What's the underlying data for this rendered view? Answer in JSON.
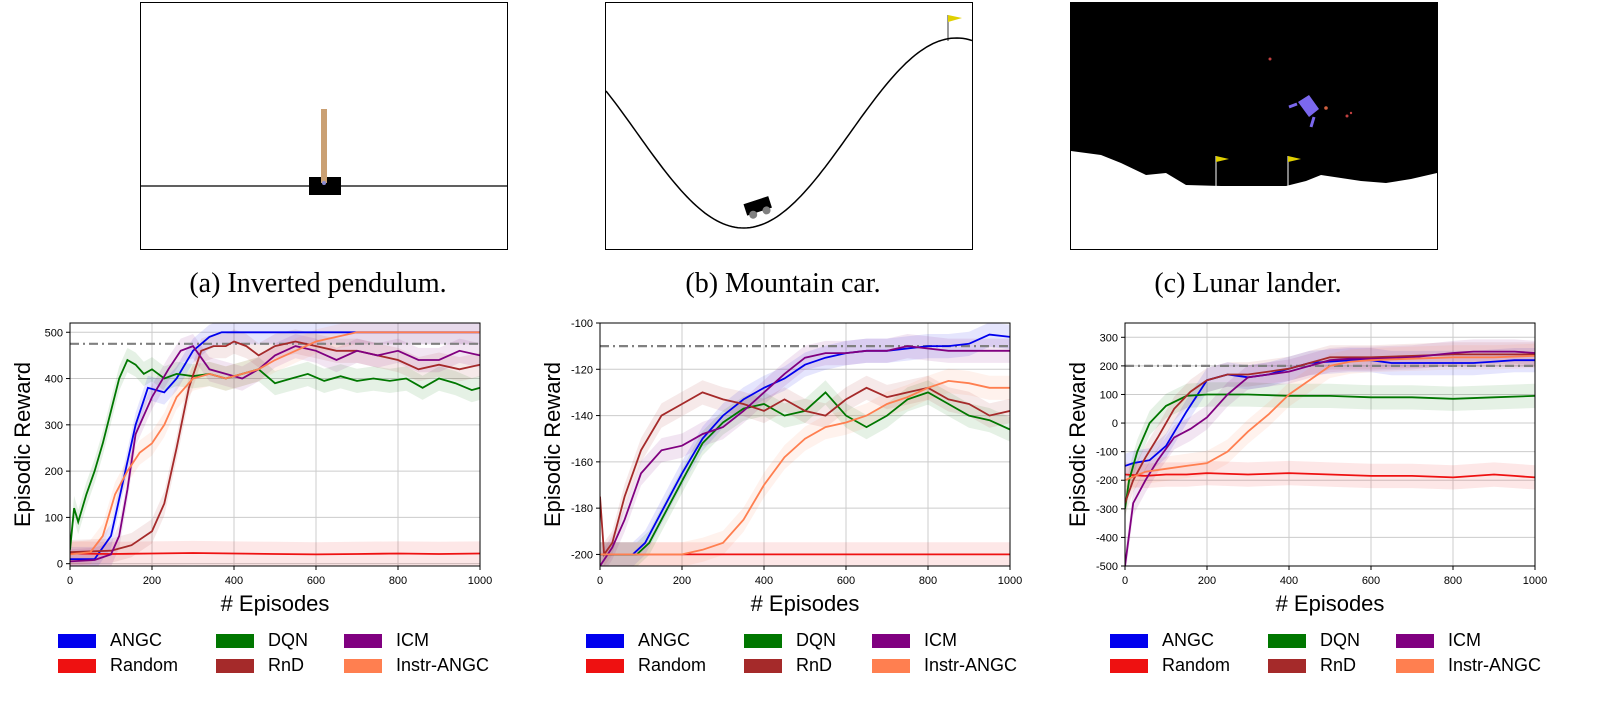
{
  "panels": [
    {
      "caption": "(a) Inverted pendulum."
    },
    {
      "caption": "(b) Mountain car."
    },
    {
      "caption": "(c) Lunar lander."
    }
  ],
  "colors": {
    "ANGC": "#0000ee",
    "Random": "#ee1111",
    "DQN": "#007700",
    "RnD": "#a52a2a",
    "ICM": "#800080",
    "Instr-ANGC": "#ff7f50",
    "threshold": "#808080"
  },
  "chart_data": [
    {
      "type": "line",
      "xlabel": "# Episodes",
      "ylabel": "Episodic Reward",
      "xlim": [
        0,
        1000
      ],
      "ylim": [
        -5,
        520
      ],
      "xticks": [
        0,
        200,
        400,
        600,
        800,
        1000
      ],
      "yticks": [
        0,
        100,
        200,
        300,
        400,
        500
      ],
      "threshold": 475,
      "grid": true,
      "legend": "bottom",
      "series": [
        {
          "name": "ANGC",
          "x": [
            0,
            60,
            100,
            130,
            160,
            190,
            230,
            260,
            300,
            340,
            370,
            400,
            500,
            600,
            700,
            800,
            900,
            1000
          ],
          "y": [
            10,
            10,
            60,
            180,
            300,
            380,
            370,
            400,
            460,
            490,
            500,
            500,
            500,
            500,
            500,
            500,
            500,
            500
          ]
        },
        {
          "name": "Random",
          "x": [
            0,
            100,
            200,
            300,
            400,
            500,
            600,
            700,
            800,
            900,
            1000
          ],
          "y": [
            22,
            21,
            22,
            23,
            22,
            21,
            20,
            21,
            22,
            21,
            22
          ]
        },
        {
          "name": "DQN",
          "x": [
            0,
            10,
            20,
            40,
            60,
            80,
            100,
            120,
            140,
            160,
            180,
            200,
            230,
            260,
            300,
            340,
            380,
            420,
            460,
            500,
            540,
            580,
            620,
            660,
            700,
            740,
            780,
            820,
            860,
            900,
            940,
            980,
            1000
          ],
          "y": [
            30,
            120,
            90,
            150,
            200,
            260,
            330,
            400,
            440,
            430,
            410,
            420,
            400,
            410,
            405,
            410,
            400,
            410,
            420,
            390,
            400,
            410,
            395,
            405,
            395,
            400,
            395,
            400,
            380,
            400,
            390,
            375,
            380
          ]
        },
        {
          "name": "RnD",
          "x": [
            0,
            100,
            150,
            200,
            230,
            260,
            290,
            320,
            350,
            380,
            400,
            430,
            460,
            500,
            550,
            600,
            650,
            700,
            750,
            800,
            850,
            900,
            950,
            1000
          ],
          "y": [
            25,
            28,
            40,
            70,
            130,
            250,
            380,
            460,
            470,
            470,
            480,
            470,
            450,
            470,
            480,
            470,
            460,
            460,
            450,
            440,
            420,
            430,
            420,
            430
          ]
        },
        {
          "name": "ICM",
          "x": [
            0,
            60,
            100,
            120,
            140,
            160,
            200,
            240,
            270,
            300,
            340,
            380,
            420,
            460,
            500,
            550,
            600,
            650,
            700,
            750,
            800,
            850,
            900,
            950,
            1000
          ],
          "y": [
            5,
            8,
            20,
            60,
            160,
            280,
            360,
            420,
            460,
            470,
            420,
            410,
            400,
            420,
            450,
            470,
            460,
            440,
            460,
            450,
            460,
            440,
            440,
            460,
            450
          ]
        },
        {
          "name": "Instr-ANGC",
          "x": [
            0,
            50,
            80,
            110,
            140,
            170,
            200,
            230,
            260,
            300,
            340,
            380,
            420,
            460,
            500,
            550,
            600,
            650,
            700,
            750,
            800,
            850,
            900,
            950,
            1000
          ],
          "y": [
            20,
            25,
            60,
            150,
            200,
            240,
            260,
            300,
            360,
            400,
            410,
            400,
            410,
            420,
            440,
            460,
            480,
            490,
            500,
            500,
            500,
            500,
            500,
            500,
            500
          ]
        }
      ]
    },
    {
      "type": "line",
      "xlabel": "# Episodes",
      "ylabel": "Episodic Reward",
      "xlim": [
        0,
        1000
      ],
      "ylim": [
        -205,
        -100
      ],
      "xticks": [
        0,
        200,
        400,
        600,
        800,
        1000
      ],
      "yticks": [
        -200,
        -180,
        -160,
        -140,
        -120,
        -100
      ],
      "threshold": -110,
      "grid": true,
      "legend": "bottom",
      "series": [
        {
          "name": "ANGC",
          "x": [
            0,
            80,
            110,
            140,
            170,
            200,
            250,
            300,
            350,
            400,
            450,
            500,
            550,
            600,
            650,
            700,
            750,
            800,
            850,
            900,
            950,
            1000
          ],
          "y": [
            -200,
            -200,
            -195,
            -185,
            -175,
            -165,
            -150,
            -140,
            -133,
            -128,
            -124,
            -118,
            -115,
            -113,
            -112,
            -112,
            -111,
            -110,
            -110,
            -109,
            -105,
            -106
          ]
        },
        {
          "name": "Random",
          "x": [
            0,
            200,
            400,
            600,
            800,
            1000
          ],
          "y": [
            -200,
            -200,
            -200,
            -200,
            -200,
            -200
          ]
        },
        {
          "name": "DQN",
          "x": [
            0,
            90,
            120,
            150,
            180,
            210,
            250,
            300,
            350,
            400,
            450,
            500,
            550,
            600,
            650,
            700,
            750,
            800,
            850,
            900,
            950,
            1000
          ],
          "y": [
            -200,
            -200,
            -195,
            -185,
            -175,
            -165,
            -152,
            -143,
            -137,
            -135,
            -140,
            -138,
            -130,
            -140,
            -145,
            -140,
            -133,
            -130,
            -135,
            -140,
            -142,
            -146
          ]
        },
        {
          "name": "RnD",
          "x": [
            0,
            10,
            30,
            60,
            100,
            150,
            200,
            250,
            300,
            350,
            400,
            450,
            500,
            550,
            600,
            650,
            700,
            750,
            800,
            850,
            900,
            950,
            1000
          ],
          "y": [
            -175,
            -200,
            -195,
            -175,
            -155,
            -140,
            -135,
            -130,
            -133,
            -135,
            -138,
            -133,
            -138,
            -140,
            -133,
            -128,
            -132,
            -130,
            -128,
            -133,
            -135,
            -140,
            -138
          ]
        },
        {
          "name": "ICM",
          "x": [
            0,
            30,
            60,
            100,
            150,
            200,
            250,
            300,
            350,
            400,
            450,
            500,
            550,
            600,
            650,
            700,
            750,
            800,
            850,
            900,
            950,
            1000
          ],
          "y": [
            -205,
            -197,
            -185,
            -165,
            -155,
            -153,
            -148,
            -145,
            -138,
            -130,
            -122,
            -115,
            -113,
            -113,
            -112,
            -112,
            -110,
            -111,
            -112,
            -112,
            -112,
            -112
          ]
        },
        {
          "name": "Instr-ANGC",
          "x": [
            0,
            200,
            250,
            300,
            350,
            400,
            450,
            500,
            550,
            600,
            650,
            700,
            750,
            800,
            850,
            900,
            950,
            1000
          ],
          "y": [
            -200,
            -200,
            -198,
            -195,
            -185,
            -170,
            -158,
            -150,
            -145,
            -143,
            -140,
            -135,
            -132,
            -128,
            -125,
            -126,
            -128,
            -128
          ]
        }
      ]
    },
    {
      "type": "line",
      "xlabel": "# Episodes",
      "ylabel": "Episodic Reward",
      "xlim": [
        0,
        1000
      ],
      "ylim": [
        -500,
        350
      ],
      "xticks": [
        0,
        200,
        400,
        600,
        800,
        1000
      ],
      "yticks": [
        -500,
        -400,
        -300,
        -200,
        -100,
        0,
        100,
        200,
        300
      ],
      "threshold": 200,
      "grid": true,
      "legend": "bottom",
      "series": [
        {
          "name": "ANGC",
          "x": [
            0,
            20,
            60,
            100,
            150,
            200,
            250,
            300,
            350,
            400,
            450,
            500,
            550,
            600,
            650,
            700,
            750,
            800,
            850,
            900,
            950,
            1000
          ],
          "y": [
            -150,
            -140,
            -130,
            -80,
            40,
            150,
            170,
            160,
            170,
            190,
            210,
            215,
            220,
            220,
            210,
            210,
            210,
            210,
            210,
            215,
            220,
            220
          ]
        },
        {
          "name": "Random",
          "x": [
            0,
            50,
            100,
            150,
            200,
            300,
            400,
            500,
            600,
            700,
            800,
            900,
            950,
            1000
          ],
          "y": [
            -180,
            -185,
            -180,
            -180,
            -175,
            -180,
            -175,
            -180,
            -185,
            -185,
            -190,
            -180,
            -185,
            -190
          ]
        },
        {
          "name": "DQN",
          "x": [
            0,
            10,
            30,
            60,
            100,
            150,
            200,
            300,
            400,
            500,
            600,
            700,
            800,
            900,
            1000
          ],
          "y": [
            -300,
            -200,
            -100,
            0,
            60,
            95,
            100,
            100,
            95,
            95,
            90,
            90,
            85,
            90,
            95
          ]
        },
        {
          "name": "RnD",
          "x": [
            0,
            20,
            50,
            80,
            120,
            160,
            200,
            250,
            300,
            350,
            400,
            450,
            500,
            550,
            600,
            700,
            800,
            900,
            1000
          ],
          "y": [
            -280,
            -200,
            -120,
            -50,
            50,
            110,
            150,
            170,
            170,
            180,
            190,
            210,
            230,
            230,
            230,
            235,
            240,
            240,
            240
          ]
        },
        {
          "name": "ICM",
          "x": [
            0,
            20,
            50,
            80,
            120,
            160,
            200,
            250,
            300,
            350,
            400,
            450,
            500,
            550,
            600,
            700,
            800,
            850,
            900,
            950,
            1000
          ],
          "y": [
            -500,
            -280,
            -200,
            -130,
            -50,
            -20,
            20,
            100,
            160,
            170,
            180,
            200,
            220,
            225,
            225,
            230,
            245,
            250,
            250,
            250,
            245
          ]
        },
        {
          "name": "Instr-ANGC",
          "x": [
            0,
            50,
            100,
            150,
            200,
            250,
            300,
            350,
            400,
            450,
            500,
            550,
            600,
            700,
            800,
            900,
            1000
          ],
          "y": [
            -200,
            -170,
            -160,
            -150,
            -140,
            -100,
            -30,
            30,
            100,
            150,
            200,
            215,
            220,
            225,
            230,
            230,
            235
          ]
        }
      ]
    }
  ],
  "legend": {
    "items": [
      {
        "label": "ANGC",
        "key": "ANGC"
      },
      {
        "label": "DQN",
        "key": "DQN"
      },
      {
        "label": "ICM",
        "key": "ICM"
      },
      {
        "label": "Random",
        "key": "Random"
      },
      {
        "label": "RnD",
        "key": "RnD"
      },
      {
        "label": "Instr-ANGC",
        "key": "Instr-ANGC"
      }
    ]
  }
}
